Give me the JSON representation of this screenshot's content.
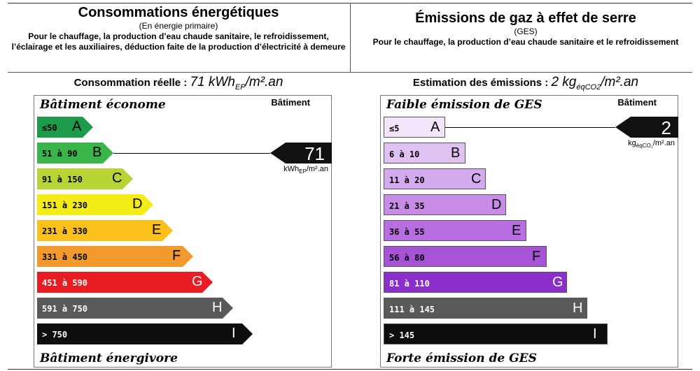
{
  "energy": {
    "title": "Consommations énergétiques",
    "subtitle": "(En énergie primaire)",
    "description": "Pour le chauffage, la production d’eau chaude sanitaire, le refroidissement, l’éclairage et les auxiliaires, déduction faite de la production d’électricité à demeure",
    "summary_label": "Consommation réelle :",
    "summary_value": "71 kWh",
    "summary_sub": "EP",
    "summary_unit": "/m².an",
    "batiment_label": "Bâtiment",
    "scale_top": "Bâtiment économe",
    "scale_bottom": "Bâtiment énergivore",
    "value": "71",
    "unit_main": "kWh",
    "unit_sub": "EP",
    "unit_tail": "/m².an",
    "marker_class_index": 1,
    "classes": [
      {
        "letter": "A",
        "range": "≤50",
        "color": "#1e9a4b",
        "text": "#000"
      },
      {
        "letter": "B",
        "range": "51 à 90",
        "color": "#3bb54a",
        "text": "#000"
      },
      {
        "letter": "C",
        "range": "91 à 150",
        "color": "#b6d433",
        "text": "#000"
      },
      {
        "letter": "D",
        "range": "151 à 230",
        "color": "#f4ec18",
        "text": "#000"
      },
      {
        "letter": "E",
        "range": "231 à 330",
        "color": "#fbc01a",
        "text": "#000"
      },
      {
        "letter": "F",
        "range": "331 à 450",
        "color": "#f39a2f",
        "text": "#000"
      },
      {
        "letter": "G",
        "range": "451 à 590",
        "color": "#e91c23",
        "text": "#fff"
      },
      {
        "letter": "H",
        "range": "591 à 750",
        "color": "#595959",
        "text": "#fff"
      },
      {
        "letter": "I",
        "range": "> 750",
        "color": "#0d0d0d",
        "text": "#fff"
      }
    ]
  },
  "ges": {
    "title": "Émissions de gaz à effet de serre",
    "subtitle": "(GES)",
    "description": "Pour le chauffage, la production d’eau chaude sanitaire et le refroidissement",
    "summary_label": "Estimation des émissions :",
    "summary_value": "2 kg",
    "summary_sub": "éqCO2",
    "summary_unit": "/m².an",
    "batiment_label": "Bâtiment",
    "scale_top": "Faible émission de GES",
    "scale_bottom": "Forte émission de GES",
    "value": "2",
    "unit_main": "kg",
    "unit_sub": "éqCO₂",
    "unit_tail": "/m².an",
    "marker_class_index": 0,
    "classes": [
      {
        "letter": "A",
        "range": "≤5",
        "color": "#f4e6fa",
        "text": "#000"
      },
      {
        "letter": "B",
        "range": "6 à 10",
        "color": "#e0c2f2",
        "text": "#000"
      },
      {
        "letter": "C",
        "range": "11 à 20",
        "color": "#d4aaef",
        "text": "#000"
      },
      {
        "letter": "D",
        "range": "21 à 35",
        "color": "#c78ce8",
        "text": "#000"
      },
      {
        "letter": "E",
        "range": "36 à 55",
        "color": "#b86de0",
        "text": "#000"
      },
      {
        "letter": "F",
        "range": "56 à 80",
        "color": "#a653d6",
        "text": "#000"
      },
      {
        "letter": "G",
        "range": "81 à 110",
        "color": "#8a2fc9",
        "text": "#fff"
      },
      {
        "letter": "H",
        "range": "111 à 145",
        "color": "#595959",
        "text": "#fff"
      },
      {
        "letter": "I",
        "range": "> 145",
        "color": "#0d0d0d",
        "text": "#fff"
      }
    ]
  }
}
